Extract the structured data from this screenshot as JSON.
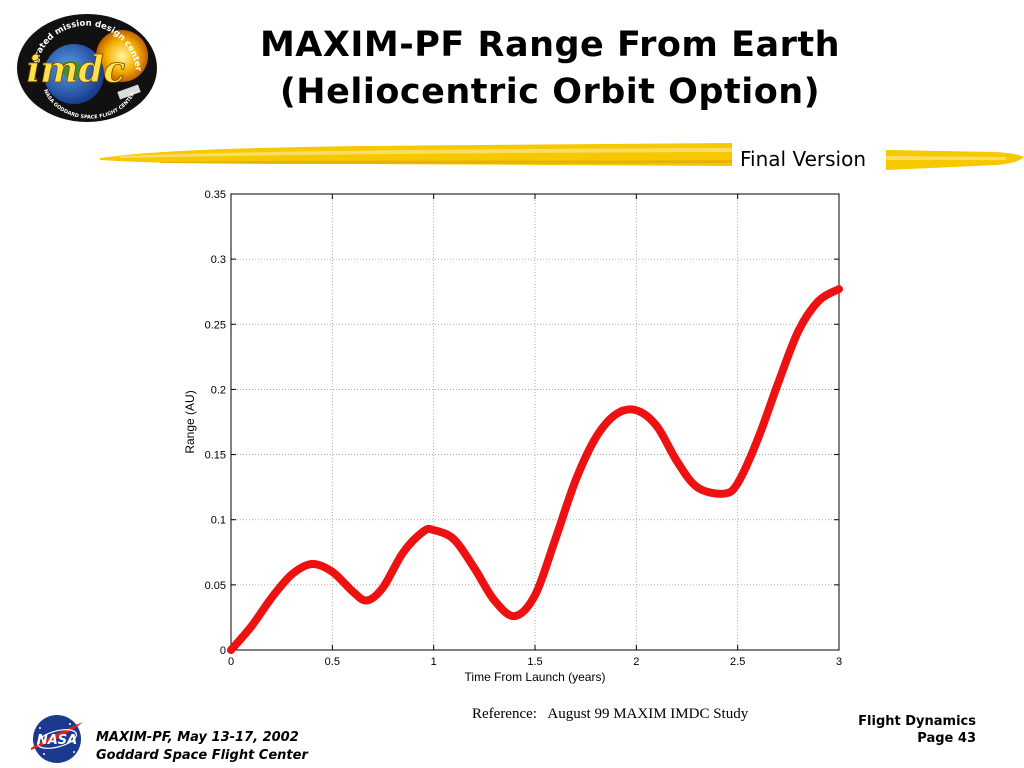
{
  "slide": {
    "title_line1": "MAXIM-PF Range From Earth",
    "title_line2": "(Heliocentric Orbit Option)",
    "version_label": "Final Version",
    "reference": "Reference:   August 99 MAXIM IMDC Study",
    "footer_left_line1": "MAXIM-PF, May 13-17, 2002",
    "footer_left_line2": "Goddard Space Flight Center",
    "footer_right_line1": "Flight Dynamics",
    "footer_right_line2": "Page 43"
  },
  "logo": {
    "ring_text": "integrated mission design center",
    "center_text": "imdc",
    "bottom_text": "NASA GODDARD SPACE FLIGHT CENTER"
  },
  "nasa_logo": {
    "text": "NASA"
  },
  "colors": {
    "accent_yellow": "#f5c800",
    "curve_red": "#ee1111",
    "nasa_blue": "#1a3a8f"
  },
  "chart_data": {
    "type": "line",
    "title": "",
    "xlabel": "Time From Launch (years)",
    "ylabel": "Range (AU)",
    "xlim": [
      0,
      3
    ],
    "ylim": [
      0,
      0.35
    ],
    "grid": true,
    "x_ticks": [
      0,
      0.5,
      1,
      1.5,
      2,
      2.5,
      3
    ],
    "x_tick_labels": [
      "0",
      "0.5",
      "1",
      "1.5",
      "2",
      "2.5",
      "3"
    ],
    "y_ticks": [
      0,
      0.05,
      0.1,
      0.15,
      0.2,
      0.25,
      0.3,
      0.35
    ],
    "y_tick_labels": [
      "0",
      "0.05",
      "0.1",
      "0.15",
      "0.2",
      "0.25",
      "0.3",
      "0.35"
    ],
    "series": [
      {
        "x": [
          0,
          0.1,
          0.2,
          0.3,
          0.4,
          0.5,
          0.6,
          0.67,
          0.75,
          0.85,
          0.95,
          1.0,
          1.1,
          1.2,
          1.3,
          1.4,
          1.5,
          1.6,
          1.7,
          1.8,
          1.9,
          2.0,
          2.1,
          2.2,
          2.3,
          2.43,
          2.5,
          2.6,
          2.7,
          2.8,
          2.9,
          3.0
        ],
        "y": [
          0.0,
          0.018,
          0.04,
          0.058,
          0.066,
          0.06,
          0.045,
          0.038,
          0.048,
          0.075,
          0.091,
          0.092,
          0.085,
          0.063,
          0.038,
          0.026,
          0.042,
          0.085,
          0.13,
          0.163,
          0.181,
          0.184,
          0.172,
          0.145,
          0.125,
          0.12,
          0.128,
          0.162,
          0.205,
          0.245,
          0.268,
          0.277
        ]
      }
    ]
  }
}
